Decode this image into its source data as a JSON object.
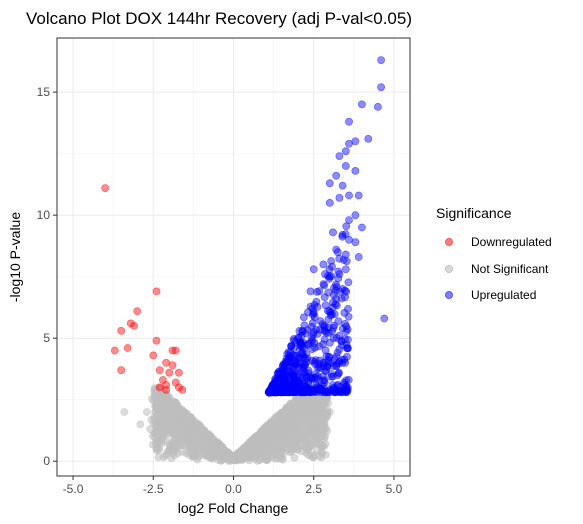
{
  "chart_data": {
    "type": "scatter",
    "title": "Volcano Plot DOX 144hr Recovery (adj P-val<0.05)",
    "xlabel": "log2 Fold Change",
    "ylabel": "-log10 P-value",
    "xlim": [
      -5.5,
      5.5
    ],
    "ylim": [
      -0.6,
      17.2
    ],
    "x_ticks": [
      -5.0,
      -2.5,
      0.0,
      2.5,
      5.0
    ],
    "x_tick_labels": [
      "-5.0",
      "-2.5",
      "0.0",
      "2.5",
      "5.0"
    ],
    "y_ticks": [
      0,
      5,
      10,
      15
    ],
    "y_tick_labels": [
      "0",
      "5",
      "10",
      "15"
    ],
    "grid": true,
    "legend": {
      "title": "Significance",
      "position": "right",
      "entries": [
        "Downregulated",
        "Not Significant",
        "Upregulated"
      ]
    },
    "colors": {
      "Downregulated": "#ff0000",
      "Not Significant": "#bebebe",
      "Upregulated": "#0000ff"
    },
    "series": [
      {
        "name": "Downregulated",
        "points": [
          [
            -4.0,
            11.1
          ],
          [
            -2.4,
            6.9
          ],
          [
            -3.0,
            6.1
          ],
          [
            -3.2,
            5.6
          ],
          [
            -3.1,
            5.5
          ],
          [
            -3.5,
            5.3
          ],
          [
            -3.7,
            4.5
          ],
          [
            -2.4,
            4.9
          ],
          [
            -3.3,
            4.6
          ],
          [
            -1.9,
            4.5
          ],
          [
            -1.8,
            4.5
          ],
          [
            -2.5,
            4.3
          ],
          [
            -2.1,
            4.0
          ],
          [
            -1.9,
            3.9
          ],
          [
            -2.3,
            3.7
          ],
          [
            -3.5,
            3.7
          ],
          [
            -2.0,
            3.6
          ],
          [
            -1.7,
            3.6
          ],
          [
            -2.2,
            3.3
          ],
          [
            -1.8,
            3.2
          ],
          [
            -2.1,
            3.1
          ],
          [
            -1.7,
            3.0
          ],
          [
            -2.3,
            3.0
          ],
          [
            -2.1,
            2.9
          ],
          [
            -1.6,
            2.9
          ]
        ]
      },
      {
        "name": "Upregulated",
        "points": [
          [
            4.6,
            16.3
          ],
          [
            4.6,
            15.2
          ],
          [
            4.5,
            14.4
          ],
          [
            4.0,
            14.5
          ],
          [
            3.6,
            13.8
          ],
          [
            4.2,
            13.1
          ],
          [
            3.8,
            13.0
          ],
          [
            3.6,
            12.9
          ],
          [
            3.5,
            12.6
          ],
          [
            3.3,
            12.4
          ],
          [
            3.5,
            12.0
          ],
          [
            3.8,
            11.8
          ],
          [
            3.2,
            11.6
          ],
          [
            3.0,
            11.3
          ],
          [
            3.4,
            11.2
          ],
          [
            3.9,
            10.8
          ],
          [
            3.6,
            10.8
          ],
          [
            3.3,
            10.7
          ],
          [
            3.0,
            10.5
          ],
          [
            3.8,
            10.0
          ],
          [
            3.6,
            9.8
          ],
          [
            4.0,
            9.5
          ],
          [
            3.1,
            9.3
          ],
          [
            3.4,
            9.2
          ],
          [
            4.7,
            5.8
          ],
          [
            3.6,
            9.0
          ],
          [
            3.8,
            8.9
          ],
          [
            3.2,
            8.6
          ],
          [
            3.5,
            8.4
          ],
          [
            3.9,
            8.3
          ],
          [
            2.8,
            8.0
          ],
          [
            3.5,
            7.8
          ],
          [
            3.3,
            7.6
          ],
          [
            3.0,
            7.5
          ],
          [
            2.5,
            7.8
          ],
          [
            2.8,
            7.2
          ],
          [
            3.4,
            7.0
          ],
          [
            3.2,
            6.6
          ],
          [
            2.4,
            6.9
          ],
          [
            3.3,
            5.1
          ]
        ],
        "envelope": {
          "x_start": 1.1,
          "x_end": 3.6,
          "y_base": 2.8,
          "count": 700
        }
      },
      {
        "name": "Not Significant",
        "shape": "V-shaped cloud around x = 0",
        "envelope": {
          "x_range": [
            -2.6,
            2.9
          ],
          "y_range": [
            0,
            3.0
          ],
          "count": 2000
        },
        "points": [
          [
            -3.4,
            2.0
          ],
          [
            -2.7,
            2.0
          ],
          [
            -2.4,
            2.2
          ],
          [
            -2.9,
            1.5
          ],
          [
            -2.6,
            1.3
          ],
          [
            -2.2,
            1.0
          ],
          [
            2.8,
            2.2
          ],
          [
            3.0,
            2.0
          ],
          [
            2.6,
            1.7
          ],
          [
            2.3,
            1.1
          ]
        ]
      }
    ]
  }
}
